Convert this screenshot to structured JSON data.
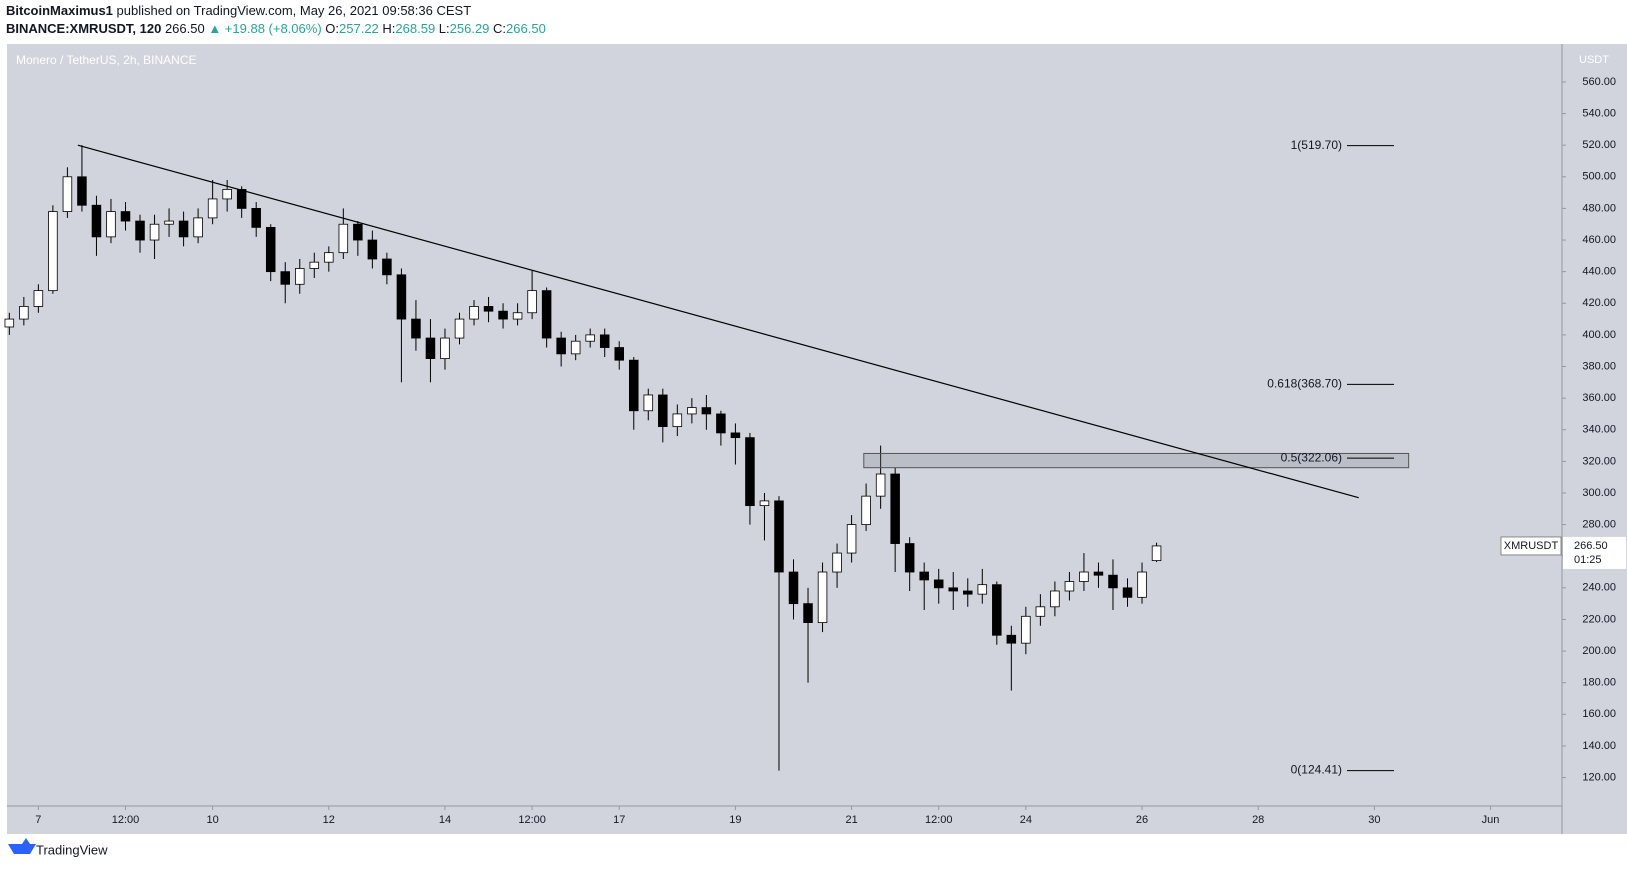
{
  "header": {
    "author": "BitcoinMaximus1",
    "published": "published on TradingView.com, May 26, 2021 09:58:36 CEST",
    "symbol": "BINANCE:XMRUSDT, 120",
    "last": "266.50",
    "change": "▲ +19.88 (+8.06%)",
    "ohlc": [
      {
        "label": "O:",
        "value": "257.22"
      },
      {
        "label": "H:",
        "value": "268.59"
      },
      {
        "label": "L:",
        "value": "256.29"
      },
      {
        "label": "C:",
        "value": "266.50"
      }
    ]
  },
  "chart_data": {
    "type": "candlestick",
    "title": "Monero / TetherUS, 2h, BINANCE",
    "y_unit": "USDT",
    "x": [
      6.5,
      6.75,
      7,
      7.25,
      7.5,
      7.75,
      8,
      8.25,
      8.5,
      8.75,
      9,
      9.25,
      9.5,
      9.75,
      10,
      10.25,
      10.5,
      10.75,
      11,
      11.25,
      11.5,
      11.75,
      12,
      12.25,
      12.5,
      12.75,
      13,
      13.25,
      13.5,
      13.75,
      14,
      14.25,
      14.5,
      14.75,
      15,
      15.25,
      15.5,
      15.75,
      16,
      16.25,
      16.5,
      16.75,
      17,
      17.25,
      17.5,
      17.75,
      18,
      18.25,
      18.5,
      18.75,
      19,
      19.25,
      19.5,
      19.75,
      20,
      20.25,
      20.5,
      20.75,
      21,
      21.25,
      21.5,
      21.75,
      22,
      22.25,
      22.5,
      22.75,
      23,
      23.25,
      23.5,
      23.75,
      24,
      24.25,
      24.5,
      24.75,
      25,
      25.25,
      25.5,
      25.75,
      26,
      26.25
    ],
    "open": [
      405,
      410,
      418,
      428,
      478,
      500,
      482,
      462,
      478,
      472,
      460,
      470,
      472,
      462,
      474,
      486,
      492,
      480,
      468,
      440,
      432,
      442,
      446,
      452,
      470,
      460,
      448,
      438,
      410,
      398,
      385,
      398,
      410,
      418,
      415,
      410,
      414,
      428,
      398,
      388,
      396,
      400,
      392,
      384,
      352,
      362,
      342,
      350,
      354,
      350,
      338,
      335,
      292,
      295,
      250,
      230,
      218,
      250,
      262,
      280,
      298,
      312,
      268,
      250,
      245,
      240,
      238,
      236,
      242,
      210,
      205,
      222,
      228,
      238,
      244,
      250,
      248,
      240,
      234,
      257.22
    ],
    "high": [
      414,
      424,
      432,
      482,
      506,
      520,
      488,
      486,
      484,
      476,
      476,
      480,
      478,
      480,
      498,
      498,
      494,
      484,
      470,
      446,
      448,
      452,
      456,
      480,
      472,
      466,
      452,
      442,
      422,
      410,
      404,
      414,
      422,
      424,
      420,
      420,
      441,
      430,
      402,
      400,
      404,
      404,
      396,
      386,
      366,
      366,
      356,
      360,
      362,
      352,
      344,
      338,
      300,
      298,
      258,
      240,
      256,
      268,
      286,
      306,
      330,
      316,
      272,
      256,
      252,
      250,
      246,
      252,
      244,
      216,
      228,
      236,
      244,
      250,
      262,
      256,
      258,
      246,
      256,
      268.59
    ],
    "low": [
      400,
      406,
      414,
      426,
      474,
      478,
      450,
      458,
      466,
      452,
      448,
      462,
      456,
      458,
      470,
      478,
      474,
      462,
      434,
      420,
      426,
      436,
      440,
      448,
      450,
      442,
      432,
      370,
      390,
      370,
      378,
      394,
      406,
      408,
      404,
      406,
      410,
      392,
      380,
      384,
      392,
      386,
      378,
      340,
      346,
      332,
      336,
      344,
      340,
      330,
      318,
      280,
      270,
      124.41,
      220,
      180,
      212,
      240,
      256,
      276,
      290,
      250,
      238,
      226,
      230,
      226,
      228,
      230,
      204,
      175,
      198,
      216,
      222,
      232,
      238,
      240,
      226,
      228,
      230,
      256.29
    ],
    "close": [
      410,
      418,
      428,
      478,
      500,
      482,
      462,
      478,
      472,
      460,
      470,
      472,
      462,
      474,
      486,
      492,
      480,
      468,
      440,
      432,
      442,
      446,
      452,
      470,
      460,
      448,
      438,
      410,
      398,
      385,
      398,
      410,
      418,
      415,
      410,
      414,
      428,
      398,
      388,
      396,
      400,
      392,
      384,
      352,
      362,
      342,
      350,
      354,
      350,
      338,
      335,
      292,
      295,
      250,
      230,
      218,
      250,
      262,
      280,
      298,
      312,
      268,
      250,
      245,
      240,
      238,
      236,
      242,
      210,
      205,
      222,
      228,
      238,
      244,
      250,
      248,
      240,
      234,
      250,
      266.5
    ],
    "xlim": [
      6.46,
      33.23
    ],
    "ylim": [
      102,
      584
    ],
    "xticks": [
      7,
      {
        "value": 8.5,
        "label": "12:00"
      },
      10,
      12,
      14,
      {
        "value": 15.5,
        "label": "12:00"
      },
      17,
      19,
      21,
      {
        "value": 22.5,
        "label": "12:00"
      },
      24,
      26,
      28,
      30,
      {
        "value": 32,
        "label": "Jun"
      }
    ],
    "yticks": [
      {
        "value": 120,
        "label": "120.00"
      },
      {
        "value": 140,
        "label": "140.00"
      },
      {
        "value": 160,
        "label": "160.00"
      },
      {
        "value": 180,
        "label": "180.00"
      },
      {
        "value": 200,
        "label": "200.00"
      },
      {
        "value": 220,
        "label": "220.00"
      },
      {
        "value": 240,
        "label": "240.00"
      },
      {
        "value": 260,
        "label": "260.00"
      },
      {
        "value": 280,
        "label": "280.00"
      },
      {
        "value": 300,
        "label": "300.00"
      },
      {
        "value": 320,
        "label": "320.00"
      },
      {
        "value": 340,
        "label": "340.00"
      },
      {
        "value": 360,
        "label": "360.00"
      },
      {
        "value": 380,
        "label": "380.00"
      },
      {
        "value": 400,
        "label": "400.00"
      },
      {
        "value": 420,
        "label": "420.00"
      },
      {
        "value": 440,
        "label": "440.00"
      },
      {
        "value": 460,
        "label": "460.00"
      },
      {
        "value": 480,
        "label": "480.00"
      },
      {
        "value": 500,
        "label": "500.00"
      },
      {
        "value": 520,
        "label": "520.00"
      },
      {
        "value": 540,
        "label": "540.00"
      },
      {
        "value": 560,
        "label": "560.00"
      }
    ],
    "trendline": {
      "x": [
        7.68,
        29.73
      ],
      "y": [
        520,
        297
      ]
    },
    "zone": {
      "x": [
        21.21,
        30.59
      ],
      "y": [
        316,
        325
      ]
    },
    "fib_levels": [
      {
        "label": "1(519.70)",
        "value": 519.7
      },
      {
        "label": "0.618(368.70)",
        "value": 368.7
      },
      {
        "label": "0.5(322.06)",
        "value": 322.06
      },
      {
        "label": "0(124.41)",
        "value": 124.41
      }
    ],
    "price_label": {
      "symbol": "XMRUSDT",
      "value": 266.5,
      "text": "266.50",
      "countdown": "01:25"
    },
    "background": "#d1d4dc"
  },
  "footer": {
    "brand": "TradingView"
  }
}
